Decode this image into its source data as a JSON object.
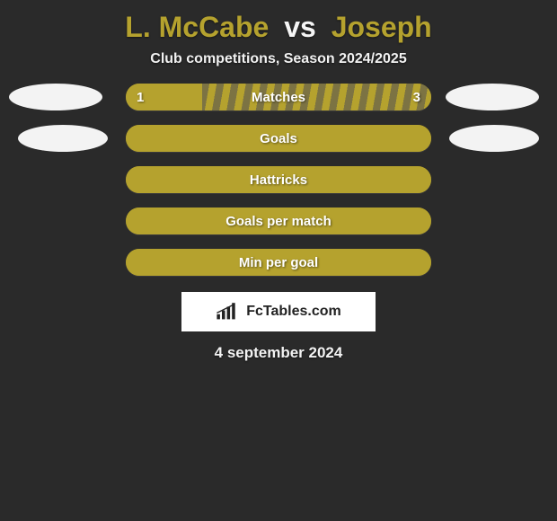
{
  "title": {
    "player1": "L. McCabe",
    "vs": "vs",
    "player2": "Joseph",
    "player1_color": "#b5a22e",
    "player2_color": "#b5a22e"
  },
  "subtitle": "Club competitions, Season 2024/2025",
  "background_color": "#2a2a2a",
  "crest_colors": {
    "left_row1": "#f3f3f3",
    "right_row1": "#f3f3f3",
    "left_row2": "#f3f3f3",
    "right_row2": "#f3f3f3"
  },
  "bar_defaults": {
    "default_fill": "#b5a22e",
    "stripe_color": "#7c7343",
    "track": "#b5a22e"
  },
  "rows": [
    {
      "label": "Matches",
      "left_value": "1",
      "right_value": "3",
      "left_pct": 25,
      "right_pct": 75,
      "left_fill": "#b5a22e",
      "right_fill": "#7c7343",
      "show_values": true,
      "striped": true
    },
    {
      "label": "Goals",
      "left_value": "",
      "right_value": "",
      "left_pct": 50,
      "right_pct": 50,
      "left_fill": "#b5a22e",
      "right_fill": "#b5a22e",
      "show_values": false,
      "striped": false
    },
    {
      "label": "Hattricks",
      "left_value": "",
      "right_value": "",
      "left_pct": 50,
      "right_pct": 50,
      "left_fill": "#b5a22e",
      "right_fill": "#b5a22e",
      "show_values": false,
      "striped": false
    },
    {
      "label": "Goals per match",
      "left_value": "",
      "right_value": "",
      "left_pct": 50,
      "right_pct": 50,
      "left_fill": "#b5a22e",
      "right_fill": "#b5a22e",
      "show_values": false,
      "striped": false
    },
    {
      "label": "Min per goal",
      "left_value": "",
      "right_value": "",
      "left_pct": 50,
      "right_pct": 50,
      "left_fill": "#b5a22e",
      "right_fill": "#b5a22e",
      "show_values": false,
      "striped": false
    }
  ],
  "logo_text": "FcTables.com",
  "date": "4 september 2024"
}
